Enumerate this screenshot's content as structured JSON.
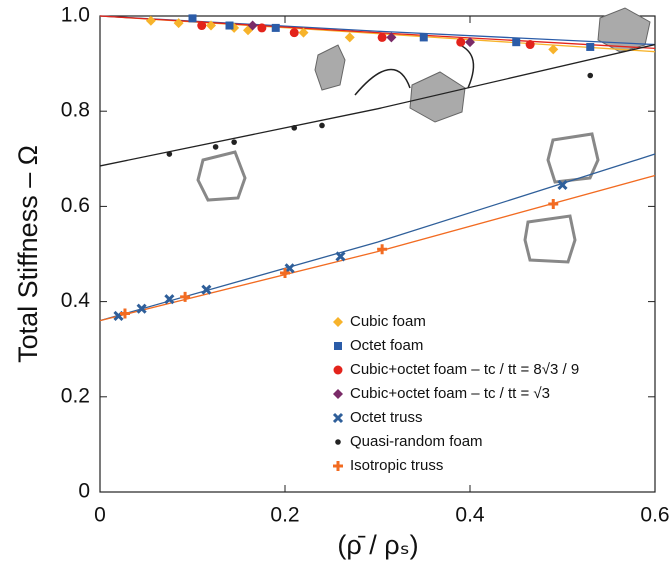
{
  "chart_data": {
    "type": "scatter",
    "xlabel": "(ρ̄ / ρₛ)",
    "ylabel": "Total Stiffness – Ω",
    "xlim": [
      0,
      0.6
    ],
    "ylim": [
      0,
      1.0
    ],
    "xticks": [
      0,
      0.2,
      0.4,
      0.6
    ],
    "yticks": [
      0,
      0.2,
      0.4,
      0.6,
      0.8,
      {
        "value": 1,
        "label": "1.0"
      }
    ],
    "series": [
      {
        "name": "Cubic foam",
        "color": "#f7b32b",
        "marker": "diamond",
        "x": [
          0.055,
          0.085,
          0.12,
          0.145,
          0.16,
          0.22,
          0.27,
          0.49
        ],
        "values": [
          0.99,
          0.985,
          0.98,
          0.975,
          0.97,
          0.965,
          0.955,
          0.93
        ],
        "fit": {
          "x": [
            0,
            0.3,
            0.6
          ],
          "values": [
            1.0,
            0.963,
            0.925
          ]
        }
      },
      {
        "name": "Octet foam",
        "color": "#2b5ca8",
        "marker": "square",
        "x": [
          0.1,
          0.14,
          0.19,
          0.35,
          0.45,
          0.53
        ],
        "values": [
          0.995,
          0.98,
          0.975,
          0.955,
          0.945,
          0.935
        ],
        "fit": {
          "x": [
            0,
            0.3,
            0.6
          ],
          "values": [
            1.0,
            0.968,
            0.94
          ]
        }
      },
      {
        "name": "Cubic+octet foam – tc / tt = 8√3 / 9",
        "color": "#e3231b",
        "marker": "circle",
        "x": [
          0.11,
          0.175,
          0.21,
          0.305,
          0.39,
          0.465
        ],
        "values": [
          0.98,
          0.975,
          0.965,
          0.955,
          0.945,
          0.94
        ],
        "fit": {
          "x": [
            0,
            0.3,
            0.6
          ],
          "values": [
            1.0,
            0.965,
            0.932
          ]
        }
      },
      {
        "name": "Cubic+octet foam – tc / tt = √3",
        "color": "#7a2b68",
        "marker": "diamond",
        "x": [
          0.165,
          0.315,
          0.4
        ],
        "values": [
          0.98,
          0.955,
          0.945
        ]
      },
      {
        "name": "Octet truss",
        "color": "#2f5f9a",
        "marker": "cross",
        "x": [
          0.02,
          0.045,
          0.075,
          0.115,
          0.205,
          0.26,
          0.5
        ],
        "values": [
          0.37,
          0.385,
          0.405,
          0.425,
          0.47,
          0.495,
          0.645
        ],
        "fit": {
          "x": [
            0,
            0.3,
            0.6
          ],
          "values": [
            0.36,
            0.525,
            0.71
          ]
        }
      },
      {
        "name": "Quasi-random foam",
        "color": "#222222",
        "marker": "dot",
        "x": [
          0.075,
          0.125,
          0.145,
          0.21,
          0.24,
          0.53
        ],
        "values": [
          0.71,
          0.725,
          0.735,
          0.765,
          0.77,
          0.875
        ],
        "fit": {
          "x": [
            0,
            0.3,
            0.6
          ],
          "values": [
            0.685,
            0.805,
            0.94
          ]
        }
      },
      {
        "name": "Isotropic truss",
        "color": "#f26b21",
        "marker": "plus",
        "x": [
          0.027,
          0.092,
          0.2,
          0.305,
          0.49
        ],
        "values": [
          0.375,
          0.41,
          0.46,
          0.51,
          0.605
        ],
        "fit": {
          "x": [
            0,
            0.3,
            0.6
          ],
          "values": [
            0.36,
            0.505,
            0.665
          ]
        }
      }
    ]
  }
}
